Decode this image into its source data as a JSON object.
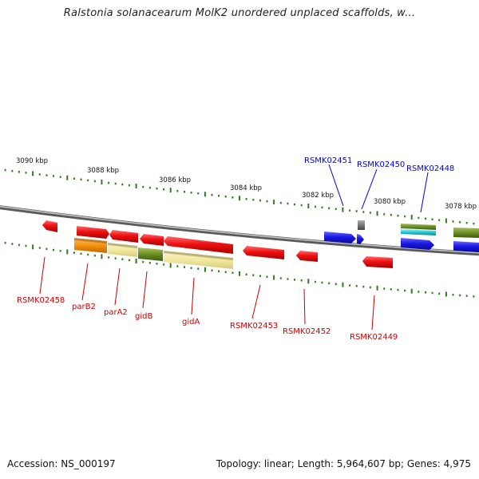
{
  "title": "Ralstonia solanacearum MolK2 unordered unplaced scaffolds, w...",
  "footer": {
    "accession": "Accession: NS_000197",
    "topology": "Topology: linear; Length: 5,964,607 bp; Genes: 4,975"
  },
  "colors": {
    "red": "#ee1111",
    "blue": "#1a1ae6",
    "orange": "#f5920f",
    "pale_yellow": "#f2e9a0",
    "olive": "#6b8e23",
    "cyan": "#22c6d6",
    "gray": "#777777",
    "tick_green": "#2e7d1e",
    "label_red": "#cc0000",
    "label_blue": "#0000cc"
  },
  "scale_labels": [
    "3090 kbp",
    "3088 kbp",
    "3086 kbp",
    "3084 kbp",
    "3082 kbp",
    "3080 kbp",
    "3078 kbp"
  ],
  "gene_labels_top": [
    "RSMK02451",
    "RSMK02450",
    "RSMK02448"
  ],
  "gene_labels_bottom": [
    "RSMK02458",
    "parB2",
    "parA2",
    "gidB",
    "gidA",
    "RSMK02453",
    "RSMK02452",
    "RSMK02449"
  ]
}
